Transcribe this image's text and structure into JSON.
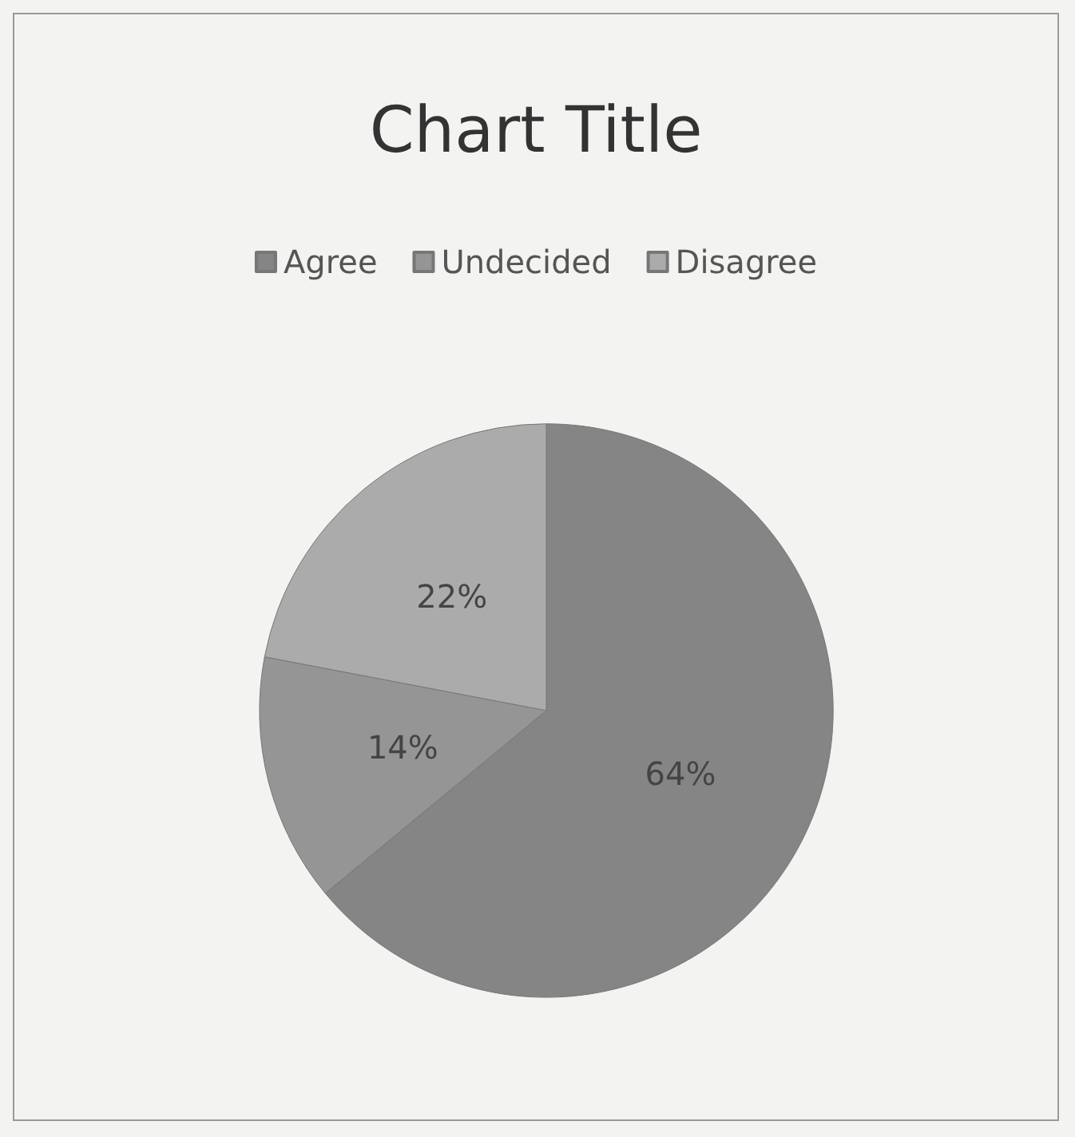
{
  "chart_data": {
    "type": "pie",
    "title": "Chart Title",
    "categories": [
      "Agree",
      "Undecided",
      "Disagree"
    ],
    "values": [
      64,
      14,
      22
    ],
    "colors": [
      "#858585",
      "#959595",
      "#ababab"
    ],
    "value_labels": [
      "64%",
      "14%",
      "22%"
    ],
    "legend": "top"
  }
}
